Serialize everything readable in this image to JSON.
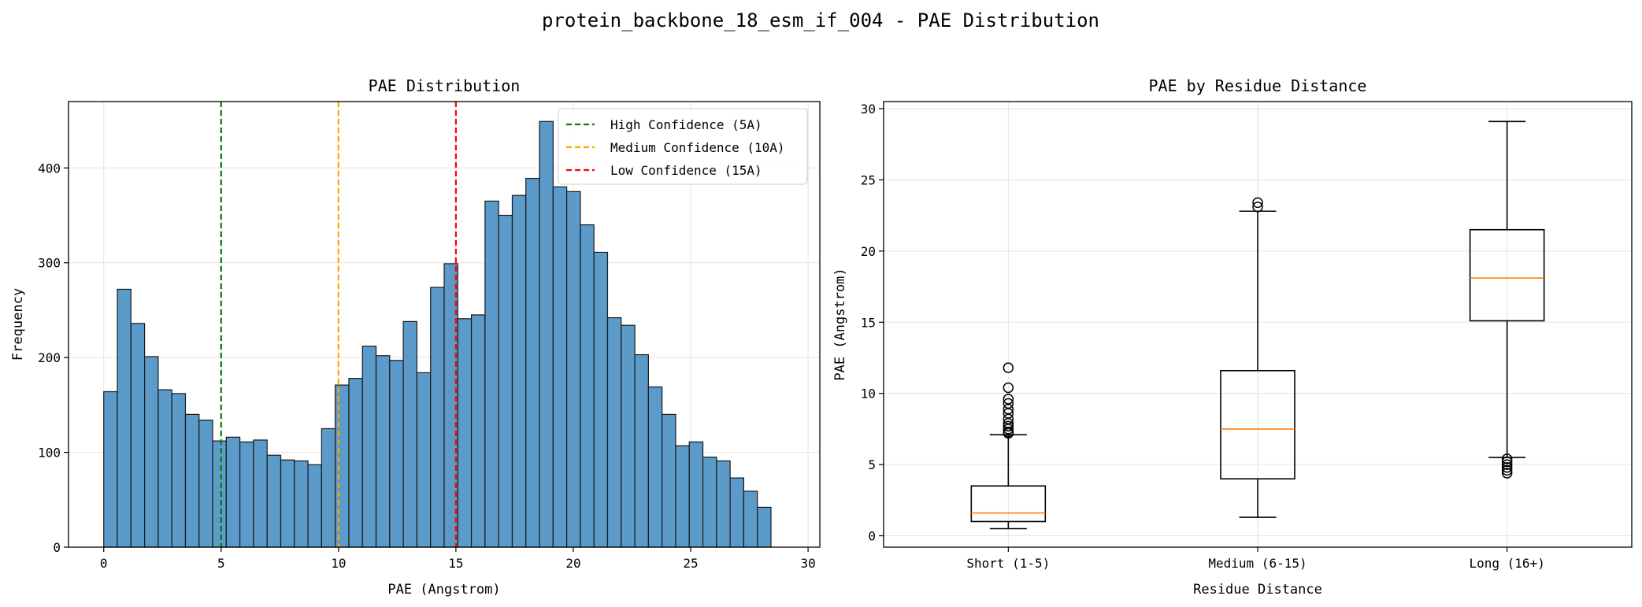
{
  "figure": {
    "title": "protein_backbone_18_esm_if_004 - PAE Distribution"
  },
  "chart_data": [
    {
      "type": "bar",
      "subtype": "histogram",
      "title": "PAE Distribution",
      "xlabel": "PAE (Angstrom)",
      "ylabel": "Frequency",
      "xlim": [
        -1.5,
        30.5
      ],
      "ylim": [
        0,
        470
      ],
      "xticks": [
        0,
        5,
        10,
        15,
        20,
        25,
        30
      ],
      "yticks": [
        0,
        100,
        200,
        300,
        400
      ],
      "grid": true,
      "bar_color": "#5b9ac9",
      "bin_start": 0,
      "bin_width": 0.58,
      "values": [
        164,
        272,
        236,
        201,
        166,
        162,
        140,
        134,
        112,
        116,
        111,
        113,
        97,
        92,
        91,
        87,
        125,
        171,
        178,
        212,
        202,
        197,
        238,
        184,
        274,
        299,
        241,
        245,
        365,
        350,
        371,
        389,
        449,
        380,
        375,
        340,
        311,
        242,
        234,
        203,
        169,
        140,
        107,
        111,
        95,
        91,
        73,
        59,
        42
      ],
      "threshold_lines": [
        {
          "x": 5,
          "color": "#008000",
          "label": "High Confidence (5A)"
        },
        {
          "x": 10,
          "color": "#ffa500",
          "label": "Medium Confidence (10A)"
        },
        {
          "x": 15,
          "color": "#ff0000",
          "label": "Low Confidence (15A)"
        }
      ],
      "legend_position": "top-right"
    },
    {
      "type": "box",
      "title": "PAE by Residue Distance",
      "xlabel": "Residue Distance",
      "ylabel": "PAE (Angstrom)",
      "ylim": [
        -0.8,
        30.5
      ],
      "yticks": [
        0,
        5,
        10,
        15,
        20,
        25,
        30
      ],
      "grid": true,
      "median_color": "#ff7f0e",
      "categories": [
        "Short (1-5)",
        "Medium (6-15)",
        "Long (16+)"
      ],
      "boxes": [
        {
          "whisker_low": 0.5,
          "q1": 1.0,
          "median": 1.6,
          "q3": 3.5,
          "whisker_high": 7.1,
          "outliers": [
            7.2,
            7.3,
            7.5,
            7.7,
            7.9,
            8.2,
            8.6,
            8.9,
            9.3,
            9.6,
            10.4,
            11.8
          ]
        },
        {
          "whisker_low": 1.3,
          "q1": 4.0,
          "median": 7.5,
          "q3": 11.6,
          "whisker_high": 22.8,
          "outliers": [
            23.1,
            23.4
          ]
        },
        {
          "whisker_low": 5.5,
          "q1": 15.1,
          "median": 18.1,
          "q3": 21.5,
          "whisker_high": 29.1,
          "outliers": [
            4.4,
            4.6,
            4.8,
            5.0,
            5.2,
            5.4
          ]
        }
      ]
    }
  ]
}
